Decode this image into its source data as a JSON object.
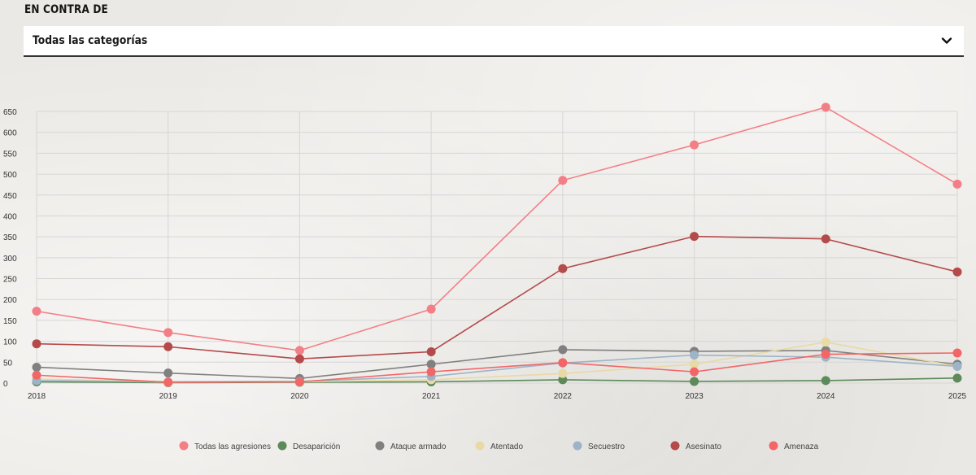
{
  "filter": {
    "section_label": "EN CONTRA DE",
    "selected": "Todas las categorías",
    "chevron_icon": "chevron-down-icon"
  },
  "chart_data": {
    "type": "line",
    "title": "",
    "xlabel": "",
    "ylabel": "",
    "x": [
      "2018",
      "2019",
      "2020",
      "2021",
      "2022",
      "2023",
      "2024",
      "2025"
    ],
    "ylim": [
      0,
      650
    ],
    "yticks": [
      0,
      50,
      100,
      150,
      200,
      250,
      300,
      350,
      400,
      450,
      500,
      550,
      600,
      650
    ],
    "grid": true,
    "legend_position": "bottom",
    "series": [
      {
        "name": "Todas las agresiones",
        "color": "#f37f86",
        "values": [
          172,
          121,
          78,
          177,
          485,
          570,
          660,
          476
        ]
      },
      {
        "name": "Desaparición",
        "color": "#5c8a5a",
        "values": [
          3,
          1,
          2,
          3,
          8,
          4,
          6,
          12
        ]
      },
      {
        "name": "Ataque armado",
        "color": "#808080",
        "values": [
          38,
          24,
          11,
          45,
          80,
          76,
          78,
          45
        ]
      },
      {
        "name": "Atentado",
        "color": "#e9d9a4",
        "values": [
          10,
          2,
          3,
          8,
          23,
          45,
          98,
          40
        ]
      },
      {
        "name": "Secuestro",
        "color": "#9db4c8",
        "values": [
          6,
          3,
          4,
          16,
          48,
          67,
          62,
          40
        ]
      },
      {
        "name": "Asesinato",
        "color": "#b44a4a",
        "values": [
          94,
          87,
          58,
          75,
          274,
          351,
          345,
          266
        ]
      },
      {
        "name": "Amenaza",
        "color": "#f26667",
        "values": [
          19,
          2,
          3,
          27,
          49,
          27,
          69,
          72
        ]
      }
    ]
  }
}
